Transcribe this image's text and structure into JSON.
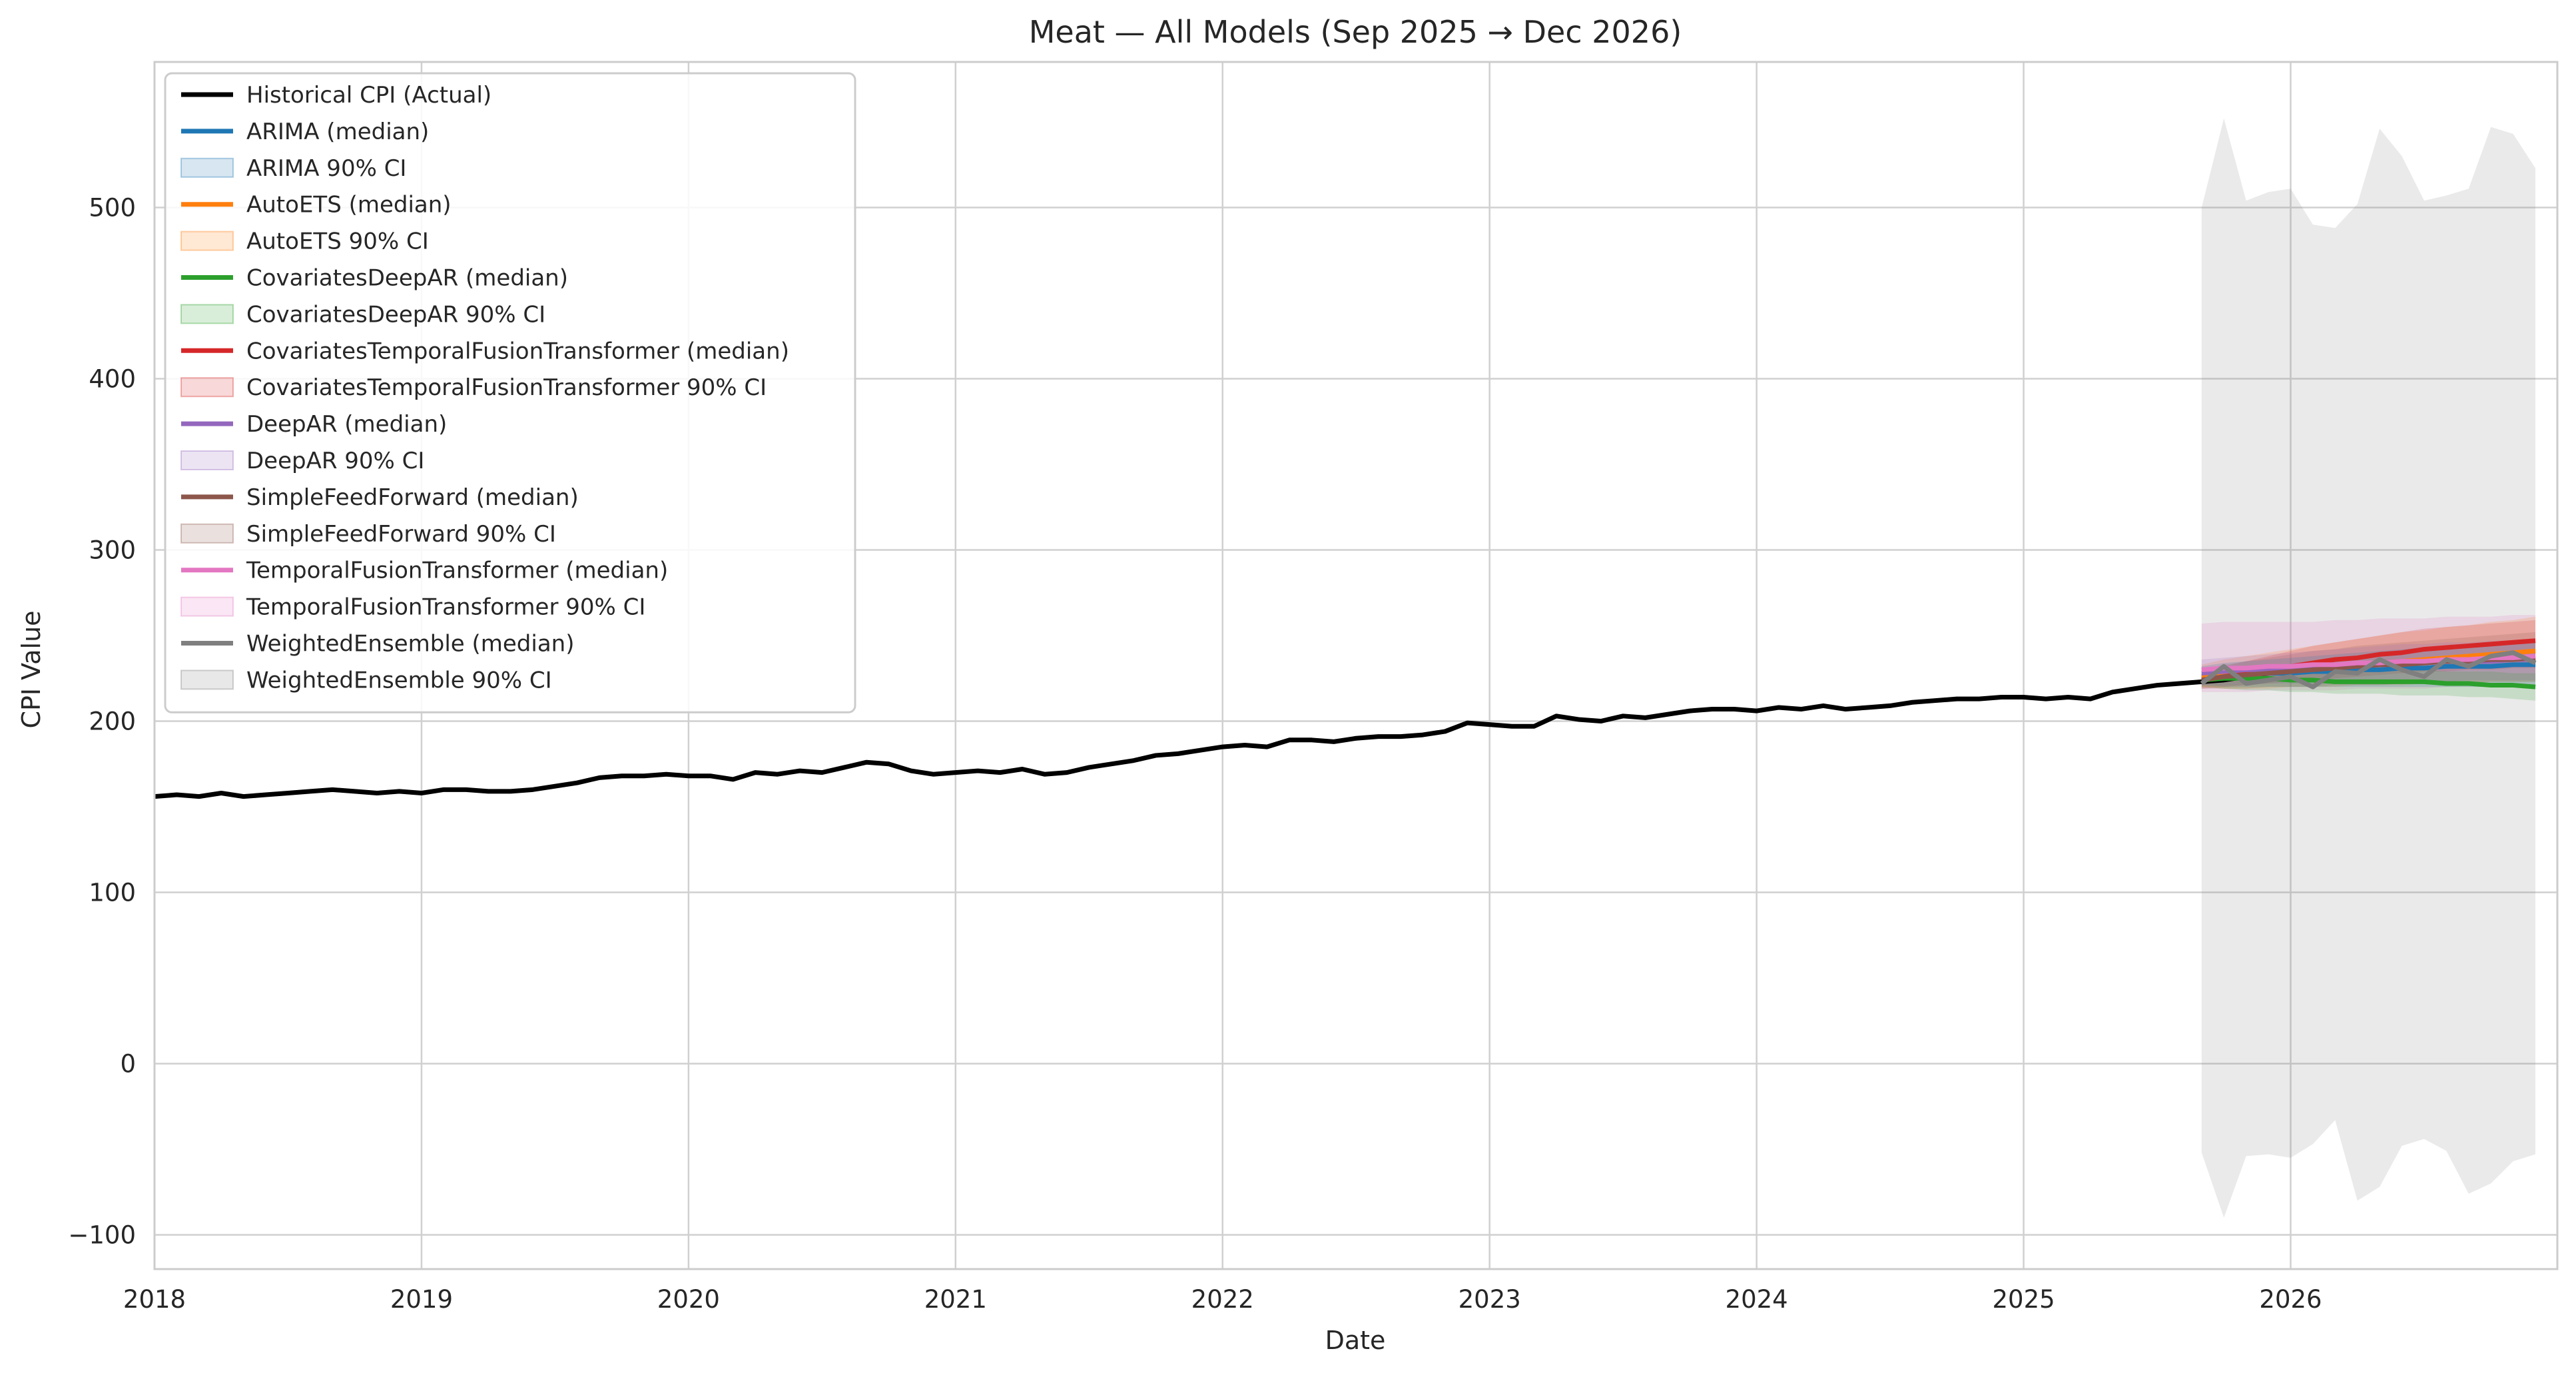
{
  "chart_data": {
    "type": "line",
    "title": "Meat — All Models (Sep 2025 → Dec 2026)",
    "xlabel": "Date",
    "ylabel": "CPI Value",
    "xlim": [
      "2018-01-01",
      "2026-12-31"
    ],
    "ylim": [
      -120,
      585
    ],
    "x_ticks": [
      "2018",
      "2019",
      "2020",
      "2021",
      "2022",
      "2023",
      "2024",
      "2025",
      "2026"
    ],
    "y_ticks": [
      -100,
      0,
      100,
      200,
      300,
      400,
      500
    ],
    "y_tick_labels": [
      "−100",
      "0",
      "100",
      "200",
      "300",
      "400",
      "500"
    ],
    "grid": true,
    "legend_position": "top-left",
    "legend": [
      {
        "label": "Historical CPI (Actual)",
        "kind": "line",
        "color": "#000000"
      },
      {
        "label": "ARIMA (median)",
        "kind": "line",
        "color": "#1f77b4"
      },
      {
        "label": "ARIMA 90% CI",
        "kind": "band",
        "color": "#1f77b4"
      },
      {
        "label": "AutoETS (median)",
        "kind": "line",
        "color": "#ff7f0e"
      },
      {
        "label": "AutoETS 90% CI",
        "kind": "band",
        "color": "#ff7f0e"
      },
      {
        "label": "CovariatesDeepAR (median)",
        "kind": "line",
        "color": "#2ca02c"
      },
      {
        "label": "CovariatesDeepAR 90% CI",
        "kind": "band",
        "color": "#2ca02c"
      },
      {
        "label": "CovariatesTemporalFusionTransformer (median)",
        "kind": "line",
        "color": "#d62728"
      },
      {
        "label": "CovariatesTemporalFusionTransformer 90% CI",
        "kind": "band",
        "color": "#d62728"
      },
      {
        "label": "DeepAR (median)",
        "kind": "line",
        "color": "#9467bd"
      },
      {
        "label": "DeepAR 90% CI",
        "kind": "band",
        "color": "#9467bd"
      },
      {
        "label": "SimpleFeedForward (median)",
        "kind": "line",
        "color": "#8c564b"
      },
      {
        "label": "SimpleFeedForward 90% CI",
        "kind": "band",
        "color": "#8c564b"
      },
      {
        "label": "TemporalFusionTransformer (median)",
        "kind": "line",
        "color": "#e377c2"
      },
      {
        "label": "TemporalFusionTransformer 90% CI",
        "kind": "band",
        "color": "#e377c2"
      },
      {
        "label": "WeightedEnsemble (median)",
        "kind": "line",
        "color": "#7f7f7f"
      },
      {
        "label": "WeightedEnsemble 90% CI",
        "kind": "band",
        "color": "#7f7f7f"
      }
    ],
    "historical": {
      "name": "Historical CPI (Actual)",
      "color": "#000000",
      "start": "2018-01",
      "values": [
        156,
        157,
        156,
        158,
        156,
        157,
        158,
        159,
        160,
        159,
        158,
        159,
        158,
        160,
        160,
        159,
        159,
        160,
        162,
        164,
        167,
        168,
        168,
        169,
        168,
        168,
        166,
        170,
        169,
        171,
        170,
        173,
        176,
        175,
        171,
        169,
        170,
        171,
        170,
        172,
        169,
        170,
        173,
        175,
        177,
        180,
        181,
        183,
        185,
        186,
        185,
        189,
        189,
        188,
        190,
        191,
        191,
        192,
        194,
        199,
        198,
        197,
        197,
        203,
        201,
        200,
        203,
        202,
        204,
        206,
        207,
        207,
        206,
        208,
        207,
        209,
        207,
        208,
        209,
        211,
        212,
        213,
        213,
        214,
        214,
        213,
        214,
        213,
        217,
        219,
        221,
        222,
        223,
        224,
        226,
        228
      ]
    },
    "forecast_start": "2025-09",
    "forecast": [
      {
        "name": "ARIMA",
        "color": "#1f77b4",
        "median": [
          226,
          227,
          227,
          228,
          228,
          229,
          229,
          230,
          230,
          231,
          231,
          232,
          232,
          232,
          233,
          233
        ],
        "ci_low": [
          221,
          220,
          220,
          220,
          220,
          220,
          220,
          220,
          220,
          220,
          220,
          220,
          220,
          220,
          220,
          220
        ],
        "ci_high": [
          232,
          234,
          235,
          236,
          237,
          238,
          239,
          240,
          241,
          242,
          243,
          243,
          244,
          245,
          245,
          246
        ]
      },
      {
        "name": "AutoETS",
        "color": "#ff7f0e",
        "median": [
          226,
          227,
          228,
          229,
          230,
          231,
          232,
          233,
          234,
          235,
          236,
          237,
          238,
          239,
          240,
          241
        ],
        "ci_low": [
          220,
          219,
          219,
          219,
          220,
          220,
          220,
          221,
          221,
          221,
          222,
          222,
          222,
          223,
          223,
          223
        ],
        "ci_high": [
          233,
          236,
          238,
          240,
          242,
          244,
          246,
          248,
          250,
          252,
          253,
          255,
          256,
          258,
          259,
          261
        ]
      },
      {
        "name": "CovariatesDeepAR",
        "color": "#2ca02c",
        "median": [
          224,
          225,
          225,
          225,
          224,
          224,
          223,
          223,
          223,
          223,
          223,
          222,
          222,
          221,
          221,
          220
        ],
        "ci_low": [
          220,
          219,
          218,
          218,
          217,
          217,
          216,
          216,
          216,
          215,
          215,
          215,
          214,
          214,
          213,
          212
        ],
        "ci_high": [
          229,
          230,
          231,
          231,
          231,
          230,
          230,
          230,
          230,
          230,
          230,
          229,
          229,
          229,
          228,
          228
        ]
      },
      {
        "name": "CovariatesTemporalFusionTransformer",
        "color": "#d62728",
        "median": [
          224,
          226,
          228,
          230,
          232,
          234,
          236,
          237,
          239,
          240,
          242,
          243,
          244,
          245,
          246,
          247
        ],
        "ci_low": [
          219,
          220,
          221,
          222,
          223,
          224,
          225,
          226,
          227,
          228,
          229,
          229,
          230,
          230,
          231,
          231
        ],
        "ci_high": [
          230,
          232,
          235,
          238,
          241,
          244,
          246,
          248,
          250,
          252,
          254,
          255,
          256,
          257,
          258,
          259
        ]
      },
      {
        "name": "DeepAR",
        "color": "#9467bd",
        "median": [
          228,
          229,
          230,
          230,
          231,
          231,
          232,
          233,
          233,
          234,
          234,
          235,
          235,
          235,
          236,
          236
        ],
        "ci_low": [
          221,
          221,
          221,
          222,
          222,
          222,
          222,
          223,
          223,
          223,
          223,
          223,
          224,
          224,
          224,
          224
        ],
        "ci_high": [
          236,
          237,
          238,
          239,
          240,
          241,
          242,
          243,
          244,
          245,
          245,
          246,
          246,
          247,
          247,
          248
        ]
      },
      {
        "name": "SimpleFeedForward",
        "color": "#8c564b",
        "median": [
          224,
          226,
          227,
          228,
          229,
          230,
          231,
          232,
          233,
          233,
          234,
          235,
          235,
          236,
          236,
          237
        ],
        "ci_low": [
          219,
          219,
          219,
          220,
          220,
          220,
          221,
          221,
          221,
          222,
          222,
          222,
          222,
          223,
          223,
          223
        ],
        "ci_high": [
          230,
          233,
          235,
          237,
          239,
          241,
          242,
          244,
          245,
          246,
          247,
          248,
          249,
          250,
          251,
          252
        ]
      },
      {
        "name": "TemporalFusionTransformer",
        "color": "#e377c2",
        "median": [
          230,
          231,
          231,
          232,
          232,
          233,
          233,
          234,
          234,
          235,
          235,
          236,
          236,
          237,
          237,
          238
        ],
        "ci_low": [
          217,
          217,
          217,
          218,
          218,
          218,
          218,
          219,
          219,
          219,
          219,
          220,
          220,
          220,
          220,
          220
        ],
        "ci_high": [
          257,
          258,
          258,
          258,
          258,
          258,
          259,
          259,
          260,
          260,
          260,
          261,
          261,
          261,
          262,
          262
        ]
      },
      {
        "name": "WeightedEnsemble",
        "color": "#7f7f7f",
        "median": [
          222,
          232,
          222,
          224,
          226,
          220,
          229,
          228,
          236,
          230,
          226,
          236,
          232,
          238,
          240,
          234
        ],
        "ci_low": [
          -52,
          -90,
          -54,
          -53,
          -55,
          -47,
          -33,
          -80,
          -72,
          -48,
          -44,
          -51,
          -76,
          -70,
          -57,
          -53
        ],
        "ci_high": [
          500,
          552,
          504,
          509,
          511,
          490,
          488,
          502,
          546,
          530,
          504,
          507,
          511,
          547,
          543,
          523
        ]
      }
    ]
  }
}
